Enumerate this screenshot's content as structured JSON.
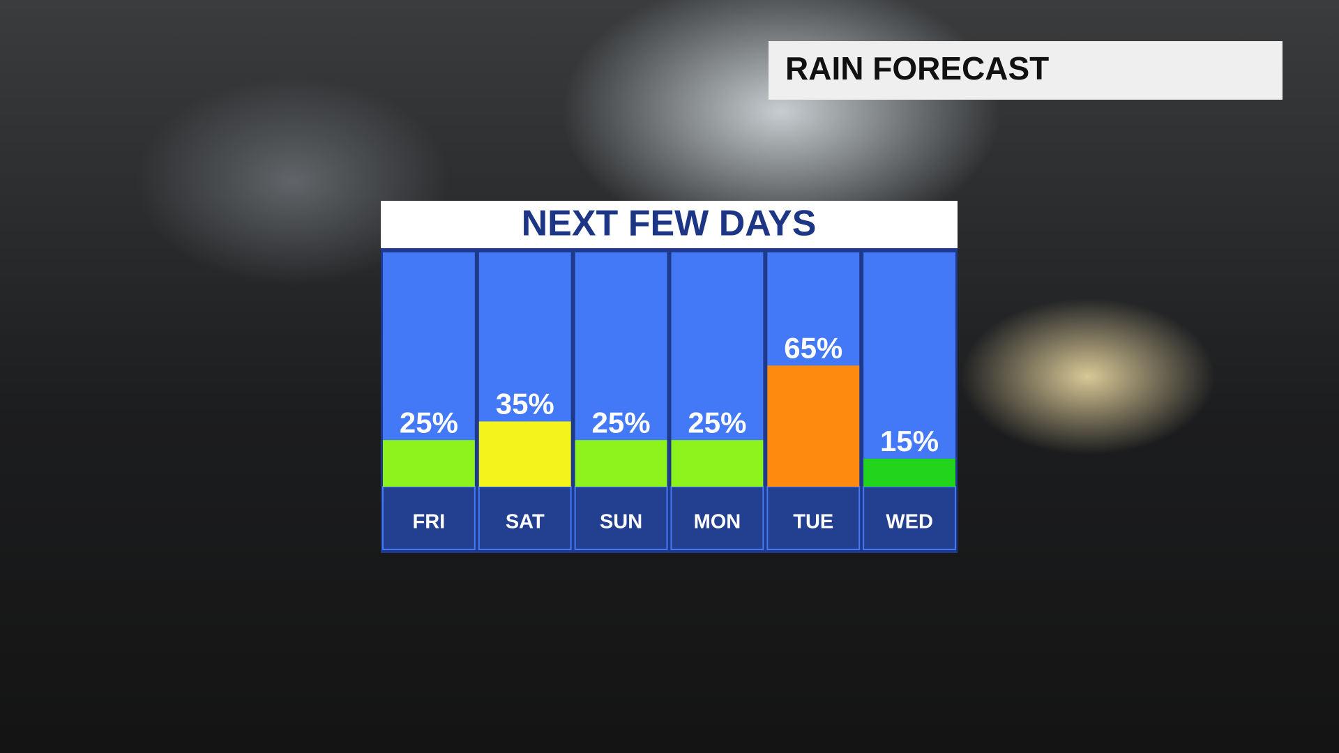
{
  "chart_data": {
    "type": "bar",
    "label": "RAIN FORECAST",
    "title": "NEXT FEW DAYS",
    "categories": [
      "FRI",
      "SAT",
      "SUN",
      "MON",
      "TUE",
      "WED"
    ],
    "values": [
      25,
      35,
      25,
      25,
      65,
      15
    ],
    "value_labels": [
      "25%",
      "35%",
      "25%",
      "25%",
      "65%",
      "15%"
    ],
    "colors": [
      "#8ef21c",
      "#f5f31c",
      "#8ef21c",
      "#8ef21c",
      "#ff8a10",
      "#22d41c"
    ],
    "ylim": [
      0,
      125
    ]
  }
}
